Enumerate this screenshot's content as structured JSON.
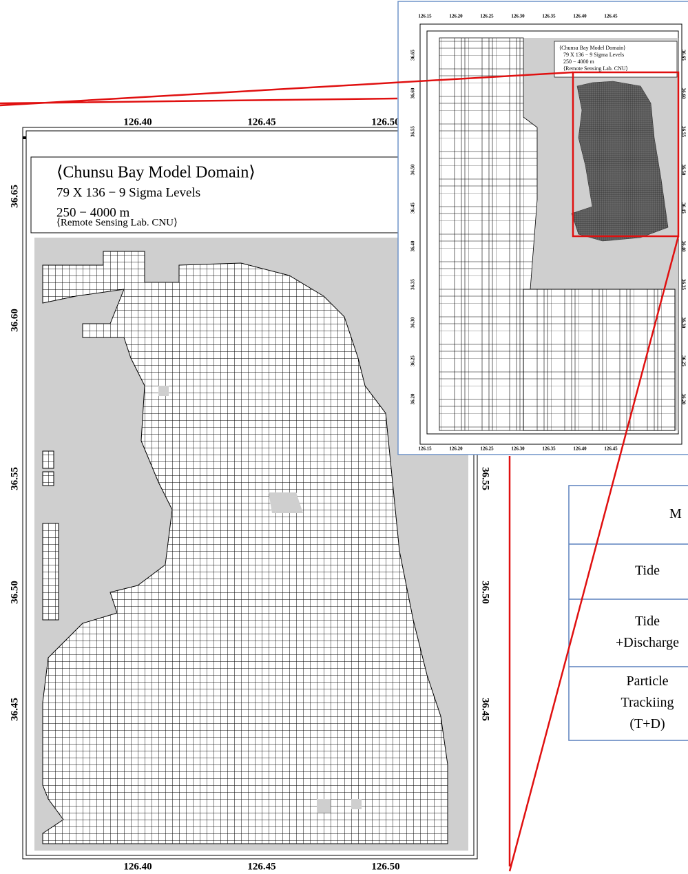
{
  "main_map": {
    "x_labels_top": [
      "126.40",
      "126.45",
      "126.50"
    ],
    "x_labels_bottom": [
      "126.40",
      "126.45",
      "126.50"
    ],
    "y_labels_left": [
      "36.65",
      "36.60",
      "36.55",
      "36.50",
      "36.45"
    ],
    "y_labels_right": [
      "36.55",
      "36.50",
      "36.45"
    ],
    "legend": [
      "⟨Chunsu Bay Model Domain⟩",
      "79 X 136 − 9 Sigma Levels",
      "250 − 4000 m",
      "⟨Remote Sensing Lab. CNU⟩"
    ]
  },
  "inset_map": {
    "x_labels_top": [
      "126.15",
      "126.20",
      "126.25",
      "126.30",
      "126.35",
      "126.40",
      "126.45"
    ],
    "x_labels_bottom": [
      "126.15",
      "126.20",
      "126.25",
      "126.30",
      "126.35",
      "126.40",
      "126.45"
    ],
    "y_labels_left": [
      "36.65",
      "36.60",
      "36.55",
      "36.50",
      "36.45",
      "36.40",
      "36.35",
      "36.30",
      "36.25",
      "36.20"
    ],
    "y_labels_right": [
      "36.65",
      "36.60",
      "36.55",
      "36.50",
      "36.45",
      "36.40",
      "36.35",
      "36.30",
      "36.25",
      "36.20"
    ],
    "legend": [
      "⟨Chunsu Bay Model Domain⟩",
      "79 X 136 − 9 Sigma Levels",
      "250 − 4000 m",
      "⟨Remote Sensing Lab. CNU⟩"
    ]
  },
  "table": {
    "rows": [
      [
        "M"
      ],
      [
        "Tide"
      ],
      [
        "Tide",
        "+Discharge"
      ],
      [
        "Particle",
        "Trackiing",
        "(T+D)"
      ]
    ]
  }
}
